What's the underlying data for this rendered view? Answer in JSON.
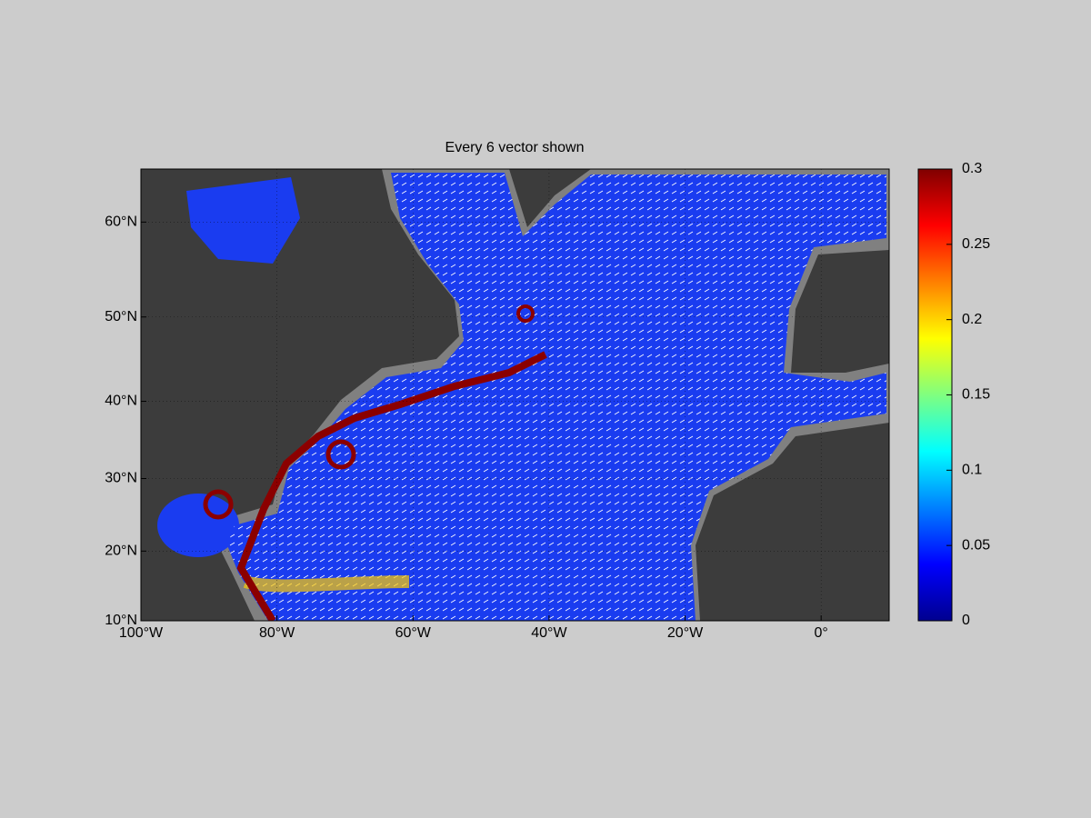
{
  "map": {
    "title": "Every 6 vector shown",
    "xlim": [
      -100,
      10
    ],
    "ylim": [
      10,
      65
    ],
    "xticks": [
      {
        "value": -100,
        "label": "100°W"
      },
      {
        "value": -80,
        "label": "80°W"
      },
      {
        "value": -60,
        "label": "60°W"
      },
      {
        "value": -40,
        "label": "40°W"
      },
      {
        "value": -20,
        "label": "20°W"
      },
      {
        "value": 0,
        "label": "0°"
      }
    ],
    "yticks": [
      {
        "value": 10,
        "label": "10°N"
      },
      {
        "value": 20,
        "label": "20°N"
      },
      {
        "value": 30,
        "label": "30°N"
      },
      {
        "value": 40,
        "label": "40°N"
      },
      {
        "value": 50,
        "label": "50°N"
      },
      {
        "value": 60,
        "label": "60°N"
      }
    ],
    "grid": true,
    "colorbar": {
      "lim": [
        0,
        0.3
      ],
      "ticks": [
        0,
        0.05,
        0.1,
        0.15,
        0.2,
        0.25,
        0.3
      ]
    }
  }
}
